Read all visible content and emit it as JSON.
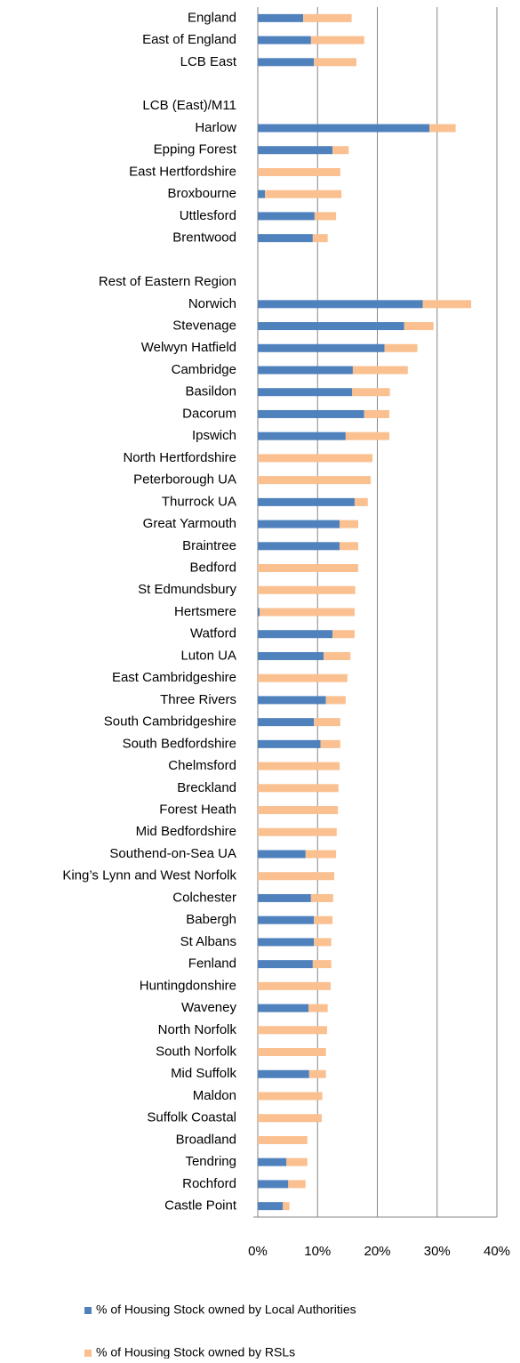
{
  "chart_data": {
    "type": "stacked-bar-horizontal",
    "categories": [
      "England",
      "East of England",
      "LCB East",
      null,
      "LCB (East)/M11",
      "Harlow",
      "Epping Forest",
      "East Hertfordshire",
      "Broxbourne",
      "Uttlesford",
      "Brentwood",
      null,
      "Rest of Eastern Region",
      "Norwich",
      "Stevenage",
      "Welwyn Hatfield",
      "Cambridge",
      "Basildon",
      "Dacorum",
      "Ipswich",
      "North Hertfordshire",
      "Peterborough UA",
      "Thurrock UA",
      "Great Yarmouth",
      "Braintree",
      "Bedford",
      "St Edmundsbury",
      "Hertsmere",
      "Watford",
      "Luton UA",
      "East Cambridgeshire",
      "Three Rivers",
      "South Cambridgeshire",
      "South Bedfordshire",
      "Chelmsford",
      "Breckland",
      "Forest Heath",
      "Mid Bedfordshire",
      "Southend-on-Sea  UA",
      "King’s Lynn and West Norfolk",
      "Colchester",
      "Babergh",
      "St Albans",
      "Fenland",
      "Huntingdonshire",
      "Waveney",
      "North Norfolk",
      "South Norfolk",
      "Mid Suffolk",
      "Maldon",
      "Suffolk Coastal",
      "Broadland",
      "Tendring",
      "Rochford",
      "Castle Point"
    ],
    "series": [
      {
        "name": "% of Housing Stock owned by Local Authorities",
        "color": "#4f81bd",
        "values": [
          7.6,
          8.9,
          9.4,
          null,
          null,
          28.7,
          12.5,
          0,
          1.2,
          9.5,
          9.2,
          null,
          null,
          27.6,
          24.5,
          21.2,
          15.9,
          15.8,
          17.8,
          14.7,
          0,
          0,
          16.2,
          13.7,
          13.7,
          0,
          0,
          0.3,
          12.5,
          11.0,
          0,
          11.4,
          9.4,
          10.5,
          0,
          0,
          0,
          0,
          8.0,
          0,
          8.9,
          9.4,
          9.4,
          9.2,
          0,
          8.5,
          0,
          0,
          8.6,
          0,
          0,
          0,
          4.8,
          5.1,
          4.2
        ]
      },
      {
        "name": "% of Housing Stock owned by RSLs",
        "color": "#fac090",
        "values": [
          8.1,
          8.9,
          7.1,
          null,
          null,
          4.4,
          2.7,
          13.8,
          12.8,
          3.6,
          2.5,
          null,
          null,
          8.1,
          4.9,
          5.5,
          9.2,
          6.3,
          4.2,
          7.3,
          19.2,
          18.9,
          2.2,
          3.1,
          3.1,
          16.8,
          16.3,
          15.9,
          3.7,
          4.5,
          15.0,
          3.3,
          4.4,
          3.3,
          13.7,
          13.5,
          13.4,
          13.2,
          5.1,
          12.8,
          3.7,
          3.1,
          2.9,
          3.1,
          12.2,
          3.2,
          11.6,
          11.4,
          2.8,
          10.8,
          10.7,
          8.3,
          3.5,
          2.9,
          1.1
        ]
      }
    ],
    "xlim": [
      0,
      40
    ],
    "xticks": [
      {
        "value": 0,
        "label": "0%"
      },
      {
        "value": 10,
        "label": "10%"
      },
      {
        "value": 20,
        "label": "20%"
      },
      {
        "value": 30,
        "label": "30%"
      },
      {
        "value": 40,
        "label": "40%"
      }
    ],
    "grid": true
  }
}
